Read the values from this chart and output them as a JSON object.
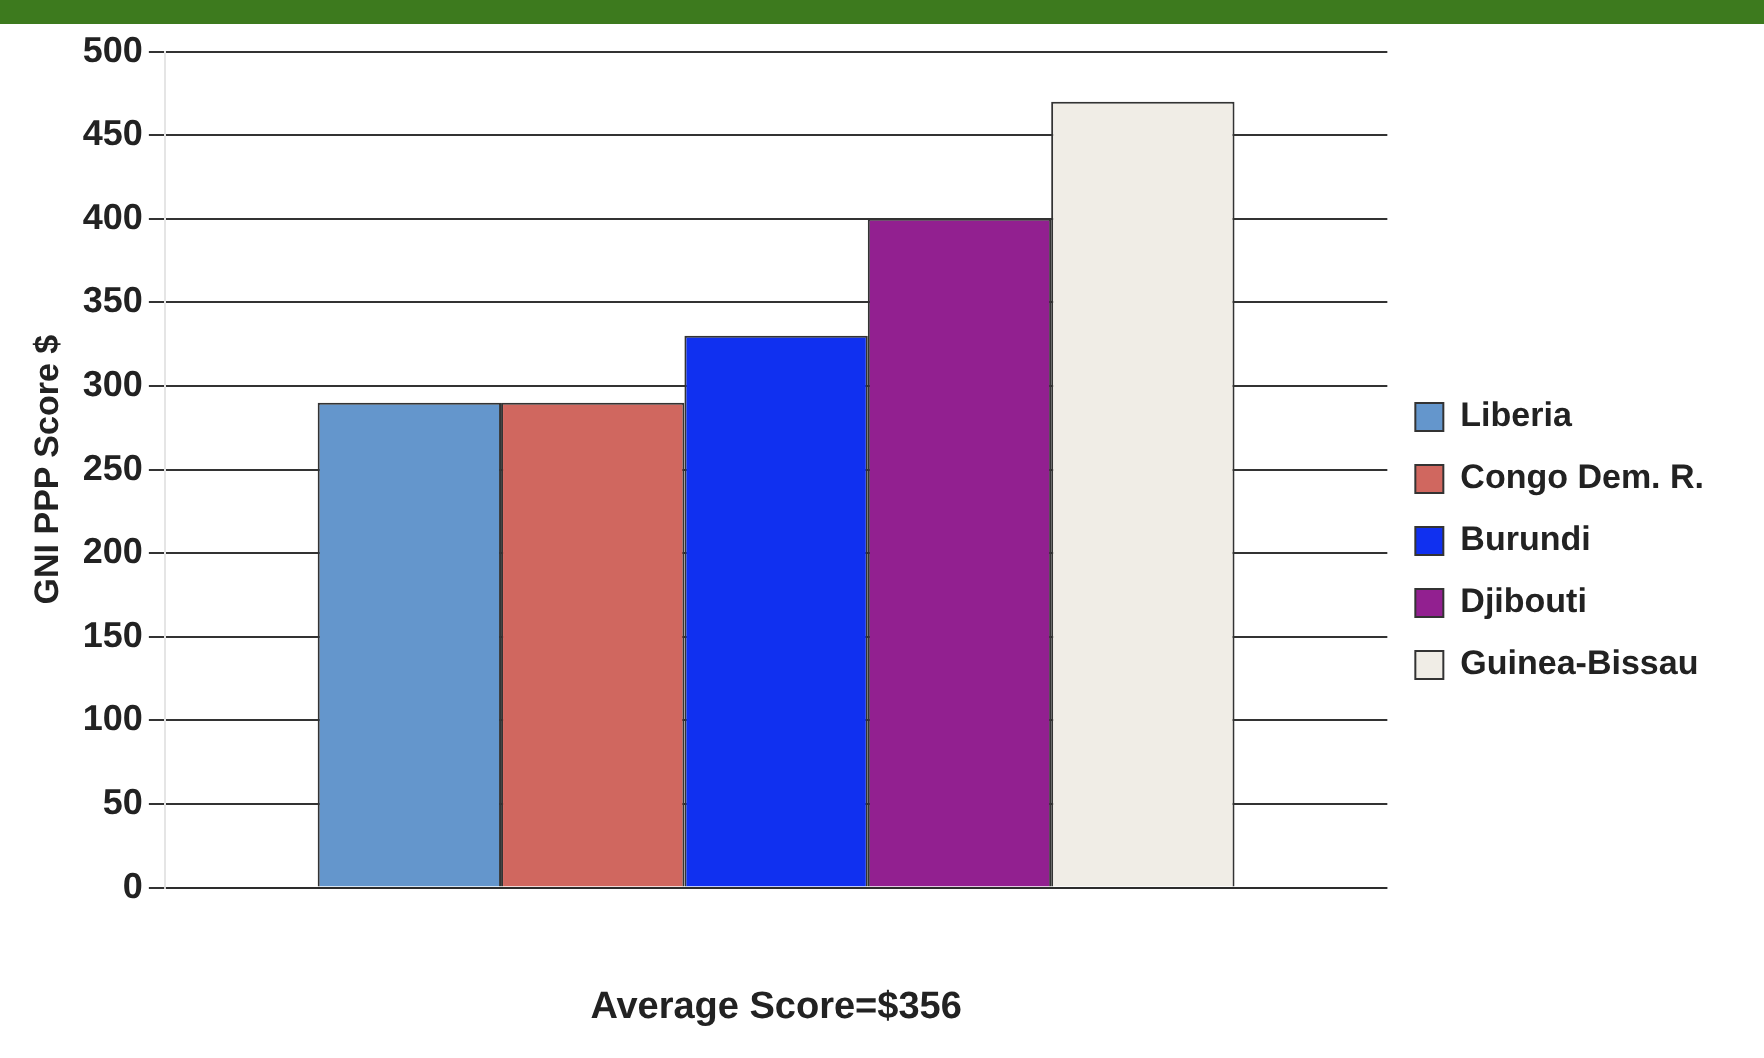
{
  "chart_data": {
    "type": "bar",
    "xlabel": "Average Score=$356",
    "ylabel": "GNI PPP Score $",
    "categories": [
      null
    ],
    "series": [
      {
        "name": "Liberia",
        "color": "#6496cc",
        "values": [
          290
        ]
      },
      {
        "name": "Congo Dem. R.",
        "color": "#d0675f",
        "values": [
          290
        ]
      },
      {
        "name": "Burundi",
        "color": "#1030f0",
        "values": [
          330
        ]
      },
      {
        "name": "Djibouti",
        "color": "#922090",
        "values": [
          400
        ]
      },
      {
        "name": "Guinea-Bissau",
        "color": "#f0ede6",
        "values": [
          470
        ]
      }
    ],
    "ylim": [
      0,
      500
    ],
    "yticks": [
      0,
      50,
      100,
      150,
      200,
      250,
      300,
      350,
      400,
      450,
      500
    ],
    "grid": "y",
    "legend": "right"
  }
}
